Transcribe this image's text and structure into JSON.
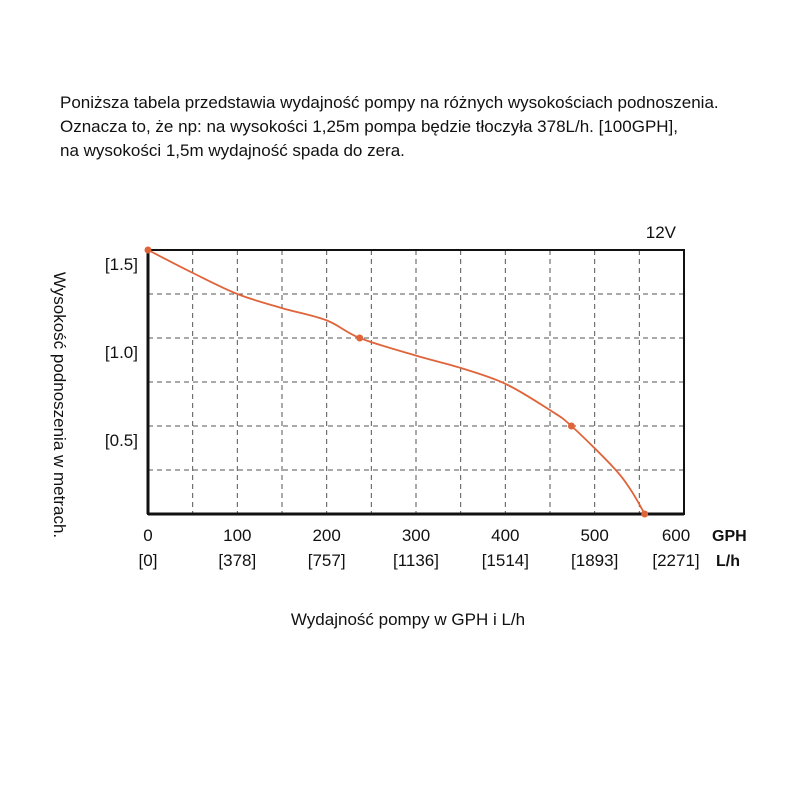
{
  "intro": [
    "Poniższa tabela przedstawia wydajność pompy na różnych wysokościach podnoszenia.",
    "Oznacza to, że np: na wysokości 1,25m pompa będzie tłoczyła 378L/h. [100GPH],",
    "na wysokości 1,5m wydajność spada do zera."
  ],
  "chart_data": {
    "type": "line",
    "title": "12V",
    "xlabel": "Wydajność pompy w GPH i L/h",
    "ylabel": "Wysokość podnoszenia w metrach.",
    "xlim": [
      0,
      600
    ],
    "ylim": [
      0,
      1.5
    ],
    "grid": true,
    "x_ticks": [
      0,
      100,
      200,
      300,
      400,
      500,
      600
    ],
    "x_tick_labels": [
      "0",
      "100",
      "200",
      "300",
      "400",
      "500",
      "600"
    ],
    "x_tick_labels_lh": [
      "[0]",
      "[378]",
      "[757]",
      "[1136]",
      "[1514]",
      "[1893]",
      "[2271]"
    ],
    "x_unit_gph": "GPH",
    "x_unit_lh": "L/h",
    "y_ticks": [
      1.5,
      1.0,
      0.5
    ],
    "y_tick_labels": [
      "[1.5]",
      "[1.0]",
      "[0.5]"
    ],
    "series": [
      {
        "name": "12V",
        "color": "#e0643a",
        "x": [
          0,
          50,
          100,
          150,
          200,
          237,
          300,
          350,
          400,
          450,
          474,
          520,
          540,
          556
        ],
        "y": [
          1.5,
          1.37,
          1.25,
          1.17,
          1.1,
          1.0,
          0.9,
          0.83,
          0.74,
          0.59,
          0.5,
          0.27,
          0.14,
          0
        ]
      }
    ],
    "markers": [
      {
        "x": 0,
        "y": 1.5
      },
      {
        "x": 237,
        "y": 1.0
      },
      {
        "x": 474,
        "y": 0.5
      },
      {
        "x": 556,
        "y": 0
      }
    ]
  }
}
